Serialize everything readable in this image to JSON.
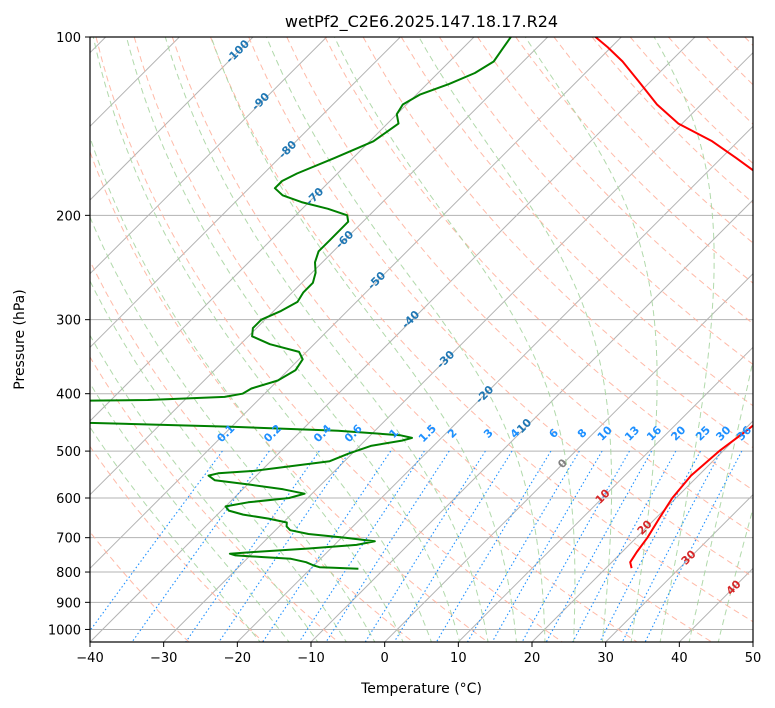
{
  "chart_data": {
    "type": "line",
    "title": "wetPf2_C2E6.2025.147.18.17.R24",
    "xlabel": "Temperature (°C)",
    "ylabel": "Pressure (hPa)",
    "xlim": [
      -40,
      50
    ],
    "ylim": [
      1050,
      100
    ],
    "y_scale": "log",
    "x_ticks": [
      -40,
      -30,
      -20,
      -10,
      0,
      10,
      20,
      30,
      40,
      50
    ],
    "x_tick_labels": [
      "−40",
      "−30",
      "−20",
      "−10",
      "0",
      "10",
      "20",
      "30",
      "40",
      "50"
    ],
    "y_ticks": [
      100,
      200,
      300,
      400,
      500,
      600,
      700,
      800,
      900,
      1000
    ],
    "y_tick_labels": [
      "100",
      "200",
      "300",
      "400",
      "500",
      "600",
      "700",
      "800",
      "900",
      "1000"
    ],
    "grid": true,
    "skew": "45 degrees",
    "series": [
      {
        "color": "#ff0000",
        "points": [
          [
            788,
            23.5
          ],
          [
            770,
            22.5
          ],
          [
            740,
            22.0
          ],
          [
            700,
            21.5
          ],
          [
            650,
            20.5
          ],
          [
            600,
            19.5
          ],
          [
            550,
            19.0
          ],
          [
            500,
            19.5
          ],
          [
            460,
            20.5
          ],
          [
            430,
            21.0
          ],
          [
            410,
            22.5
          ],
          [
            395,
            23.0
          ],
          [
            380,
            21.5
          ],
          [
            350,
            17.5
          ],
          [
            320,
            14.5
          ],
          [
            300,
            13.0
          ],
          [
            280,
            11.5
          ],
          [
            260,
            9.0
          ],
          [
            240,
            5.0
          ],
          [
            220,
            0.0
          ],
          [
            205,
            -4.5
          ],
          [
            200,
            -5.0
          ],
          [
            193,
            -4.5
          ],
          [
            185,
            -6.0
          ],
          [
            178,
            -9.0
          ],
          [
            170,
            -13.0
          ],
          [
            160,
            -18.0
          ],
          [
            150,
            -23.5
          ],
          [
            140,
            -30.5
          ],
          [
            130,
            -36.0
          ],
          [
            120,
            -41.0
          ],
          [
            110,
            -46.5
          ],
          [
            104,
            -50.5
          ],
          [
            100,
            -53.5
          ]
        ]
      },
      {
        "color": "#008000",
        "points": [
          [
            790,
            -13.5
          ],
          [
            787,
            -17.0
          ],
          [
            785,
            -19.0
          ],
          [
            780,
            -20.0
          ],
          [
            770,
            -21.5
          ],
          [
            760,
            -24.0
          ],
          [
            755,
            -28.0
          ],
          [
            750,
            -32.0
          ],
          [
            745,
            -33.0
          ],
          [
            740,
            -30.0
          ],
          [
            730,
            -23.0
          ],
          [
            720,
            -17.0
          ],
          [
            710,
            -15.0
          ],
          [
            700,
            -19.5
          ],
          [
            690,
            -25.0
          ],
          [
            680,
            -28.0
          ],
          [
            670,
            -29.0
          ],
          [
            660,
            -29.5
          ],
          [
            650,
            -32.5
          ],
          [
            640,
            -36.5
          ],
          [
            630,
            -39.0
          ],
          [
            620,
            -40.0
          ],
          [
            610,
            -37.5
          ],
          [
            600,
            -32.5
          ],
          [
            590,
            -31.0
          ],
          [
            580,
            -34.5
          ],
          [
            570,
            -39.5
          ],
          [
            560,
            -45.0
          ],
          [
            550,
            -46.5
          ],
          [
            545,
            -45.5
          ],
          [
            540,
            -41.0
          ],
          [
            520,
            -32.0
          ],
          [
            505,
            -30.5
          ],
          [
            490,
            -28.5
          ],
          [
            480,
            -25.0
          ],
          [
            475,
            -24.0
          ],
          [
            470,
            -26.0
          ],
          [
            462,
            -35.0
          ],
          [
            455,
            -50.0
          ],
          [
            448,
            -70.0
          ],
          [
            445,
            -85.0
          ],
          [
            415,
            -90.0
          ],
          [
            412,
            -82.0
          ],
          [
            410,
            -65.0
          ],
          [
            405,
            -55.0
          ],
          [
            400,
            -53.0
          ],
          [
            392,
            -52.5
          ],
          [
            380,
            -50.0
          ],
          [
            365,
            -49.0
          ],
          [
            350,
            -49.5
          ],
          [
            340,
            -51.0
          ],
          [
            330,
            -56.0
          ],
          [
            320,
            -59.5
          ],
          [
            310,
            -60.5
          ],
          [
            300,
            -60.5
          ],
          [
            290,
            -59.0
          ],
          [
            280,
            -58.0
          ],
          [
            270,
            -58.5
          ],
          [
            260,
            -58.5
          ],
          [
            250,
            -59.5
          ],
          [
            240,
            -61.0
          ],
          [
            230,
            -62.0
          ],
          [
            220,
            -62.0
          ],
          [
            205,
            -62.0
          ],
          [
            200,
            -63.0
          ],
          [
            195,
            -66.5
          ],
          [
            190,
            -71.0
          ],
          [
            185,
            -74.5
          ],
          [
            180,
            -76.5
          ],
          [
            175,
            -76.5
          ],
          [
            170,
            -75.5
          ],
          [
            160,
            -72.5
          ],
          [
            150,
            -69.5
          ],
          [
            140,
            -68.5
          ],
          [
            135,
            -70.0
          ],
          [
            130,
            -70.5
          ],
          [
            125,
            -69.5
          ],
          [
            120,
            -67.0
          ],
          [
            115,
            -65.0
          ],
          [
            110,
            -64.0
          ],
          [
            105,
            -64.5
          ],
          [
            100,
            -65.0
          ]
        ]
      }
    ],
    "background_lines": {
      "dry_adiabat_labels": [
        "-100",
        "-90",
        "-80",
        "-70",
        "-60",
        "-50",
        "-40",
        "-30",
        "-20",
        "-10",
        "0",
        "10",
        "20",
        "30",
        "40"
      ],
      "mixing_ratio_labels": [
        "0.1",
        "0.2",
        "0.4",
        "0.6",
        "1",
        "1.5",
        "2",
        "3",
        "4",
        "6",
        "8",
        "10",
        "13",
        "16",
        "20",
        "25",
        "30",
        "36"
      ]
    },
    "colors": {
      "temperature": "#ff0000",
      "dewpoint": "#008000",
      "isotherm": "#b3b3b3",
      "dry_adiabat": "#ffb29f",
      "moist_adiabat": "#a8d5a2",
      "mixing_ratio": "#1e90ff",
      "label_cold": "#1f77b4",
      "label_warm": "#d62728"
    }
  }
}
